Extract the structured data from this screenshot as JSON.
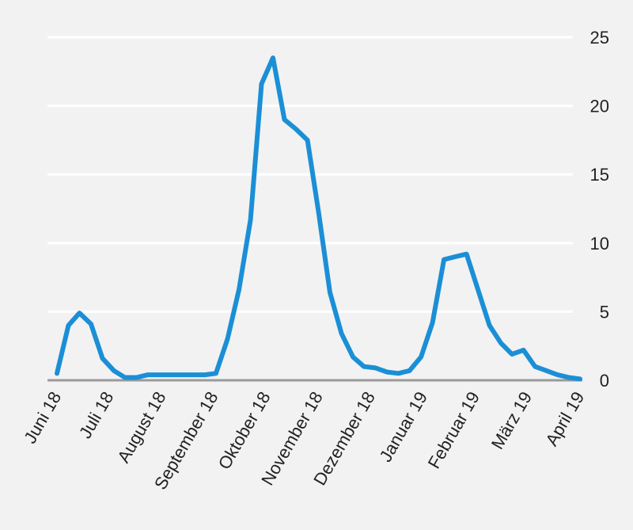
{
  "chart_data": {
    "type": "line",
    "title": "",
    "xlabel": "",
    "ylabel": "",
    "ylim": [
      0,
      25
    ],
    "yticks": [
      0,
      5,
      10,
      15,
      20,
      25
    ],
    "y_axis_side": "right",
    "grid": true,
    "categories": [
      "Juni 18",
      "Juli 18",
      "August 18",
      "September 18",
      "Oktober 18",
      "November 18",
      "Dezember 18",
      "Januar 19",
      "Februar 19",
      "März 19",
      "April 19"
    ],
    "series": [
      {
        "color": "#1b8fd6",
        "x": [
          0,
          0.22,
          0.43,
          0.65,
          0.87,
          1.09,
          1.3,
          1.52,
          1.74,
          1.96,
          2.17,
          2.39,
          2.61,
          2.83,
          3.04,
          3.26,
          3.48,
          3.7,
          3.91,
          4.13,
          4.35,
          4.57,
          4.79,
          5.0,
          5.22,
          5.44,
          5.66,
          5.87,
          6.09,
          6.31,
          6.53,
          6.74,
          6.96,
          7.18,
          7.4,
          7.61,
          7.83,
          8.05,
          8.27,
          8.49,
          8.7,
          8.92,
          9.14,
          9.36,
          9.57,
          9.79,
          10.0
        ],
        "values": [
          0.5,
          4.0,
          4.9,
          4.1,
          1.6,
          0.7,
          0.2,
          0.2,
          0.4,
          0.4,
          0.4,
          0.4,
          0.4,
          0.4,
          0.5,
          3.0,
          6.6,
          11.7,
          21.6,
          23.5,
          19.0,
          18.3,
          17.5,
          12.3,
          6.4,
          3.4,
          1.7,
          1.0,
          0.9,
          0.6,
          0.5,
          0.7,
          1.7,
          4.2,
          8.8,
          9.0,
          9.2,
          6.6,
          4.0,
          2.7,
          1.9,
          2.2,
          1.0,
          0.7,
          0.4,
          0.2,
          0.1
        ]
      }
    ]
  }
}
